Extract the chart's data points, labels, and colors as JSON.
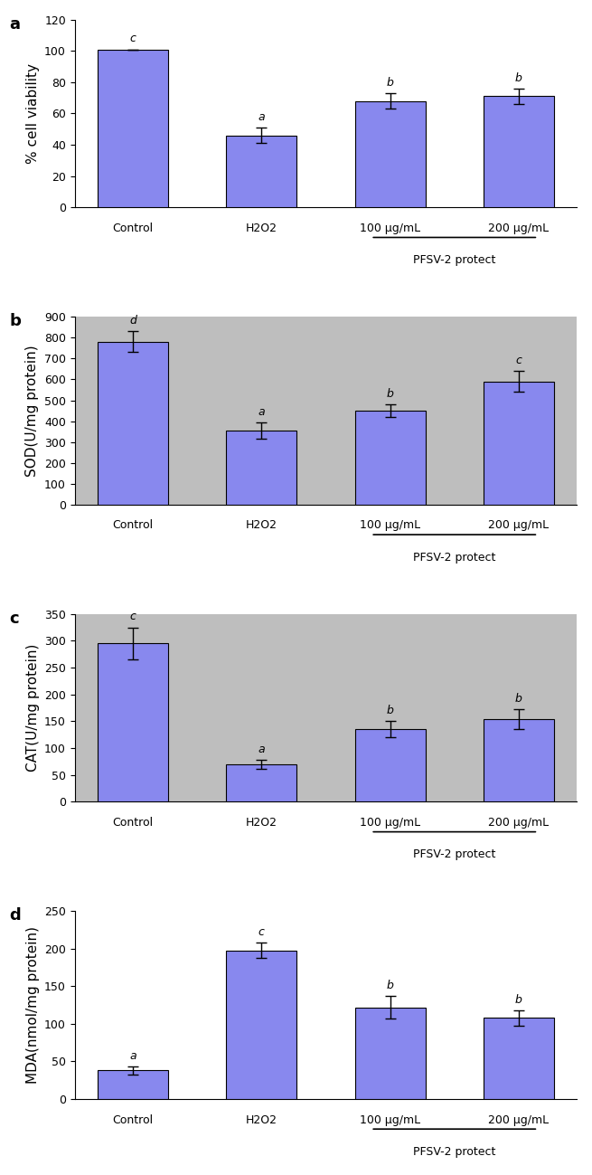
{
  "panels": [
    {
      "label": "a",
      "ylabel": "% cell viability",
      "ylim": [
        0,
        120
      ],
      "yticks": [
        0,
        20,
        40,
        60,
        80,
        100,
        120
      ],
      "values": [
        101,
        46,
        68,
        71
      ],
      "errors": [
        0,
        5,
        5,
        5
      ],
      "superscripts": [
        "c",
        "a",
        "b",
        "b"
      ],
      "bg_color": "#ffffff"
    },
    {
      "label": "b",
      "ylabel": "SOD(U/mg protein)",
      "ylim": [
        0,
        900
      ],
      "yticks": [
        0,
        100,
        200,
        300,
        400,
        500,
        600,
        700,
        800,
        900
      ],
      "values": [
        780,
        355,
        450,
        590
      ],
      "errors": [
        50,
        40,
        30,
        50
      ],
      "superscripts": [
        "d",
        "a",
        "b",
        "c"
      ],
      "bg_color": "#bebebe"
    },
    {
      "label": "c",
      "ylabel": "CAT(U/mg protein)",
      "ylim": [
        0,
        350
      ],
      "yticks": [
        0,
        50,
        100,
        150,
        200,
        250,
        300,
        350
      ],
      "values": [
        295,
        70,
        136,
        154
      ],
      "errors": [
        30,
        8,
        15,
        18
      ],
      "superscripts": [
        "c",
        "a",
        "b",
        "b"
      ],
      "bg_color": "#bebebe"
    },
    {
      "label": "d",
      "ylabel": "MDA(nmol/mg protein)",
      "ylim": [
        0,
        250
      ],
      "yticks": [
        0,
        50,
        100,
        150,
        200,
        250
      ],
      "values": [
        38,
        198,
        122,
        108
      ],
      "errors": [
        5,
        10,
        15,
        10
      ],
      "superscripts": [
        "a",
        "c",
        "b",
        "b"
      ],
      "bg_color": "#ffffff"
    }
  ],
  "categories": [
    "Control",
    "H2O2",
    "100 μg/mL",
    "200 μg/mL"
  ],
  "bracket_label": "PFSV-2 protect",
  "bar_color": "#8888ee",
  "bar_edge_color": "#000000",
  "bar_width": 0.55,
  "error_capsize": 4,
  "error_color": "black",
  "error_linewidth": 1.0,
  "superscript_fontsize": 9,
  "label_fontsize": 11,
  "tick_fontsize": 9,
  "bracket_fontsize": 9
}
